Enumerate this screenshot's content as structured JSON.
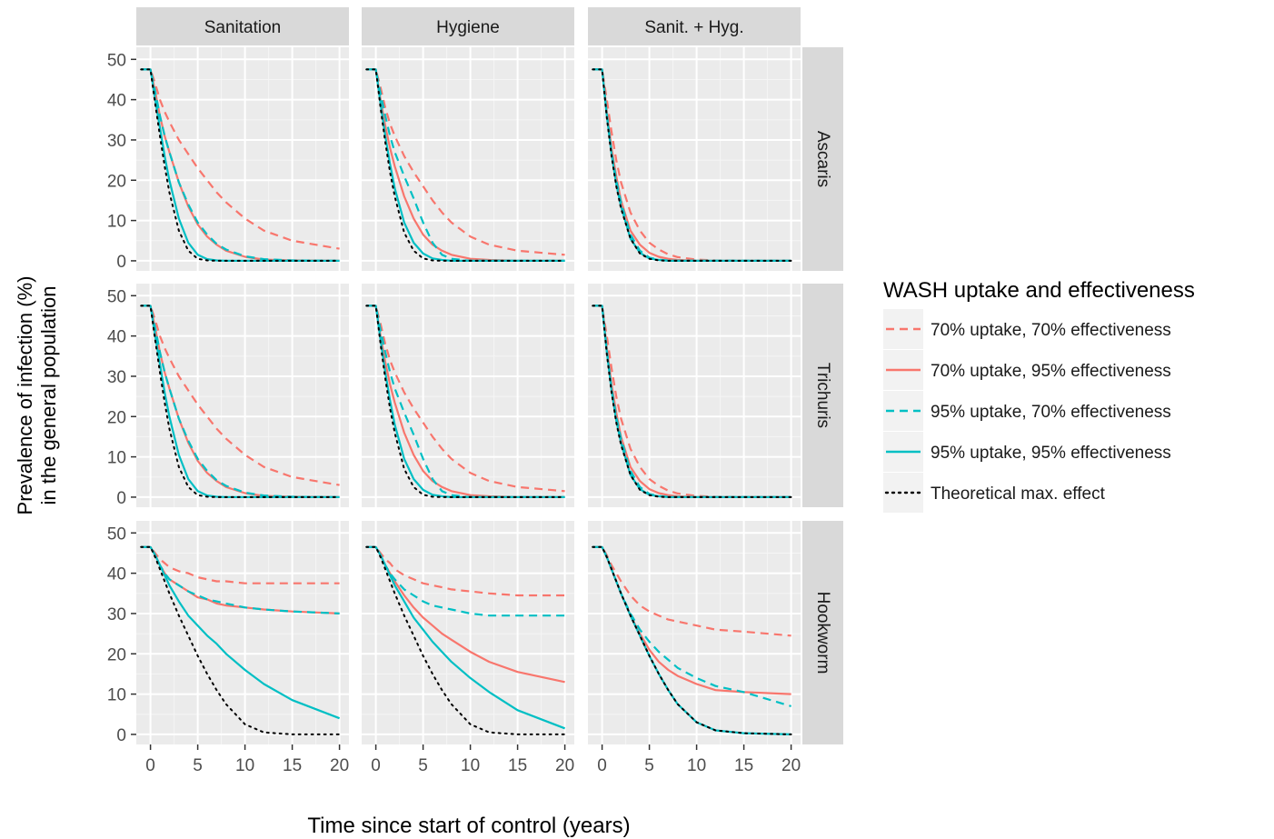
{
  "chart_data": {
    "type": "line",
    "title": "",
    "xlabel": "Time since start of control (years)",
    "ylabel_line1": "Prevalence of infection (%)",
    "ylabel_line2": "in the general population",
    "xlim": [
      -1.5,
      21
    ],
    "ylim": [
      -2.5,
      53
    ],
    "x_ticks": [
      0,
      5,
      10,
      15,
      20
    ],
    "y_ticks": [
      0,
      10,
      20,
      30,
      40,
      50
    ],
    "columns": [
      "Sanitation",
      "Hygiene",
      "Sanit. + Hyg."
    ],
    "rows": [
      "Ascaris",
      "Trichuris",
      "Hookworm"
    ],
    "legend": {
      "title": "WASH uptake and effectiveness",
      "position": "right",
      "items": [
        {
          "label": "70% uptake, 70% effectiveness",
          "color": "#F8766D",
          "dash": "dashed"
        },
        {
          "label": "70% uptake, 95% effectiveness",
          "color": "#F8766D",
          "dash": "solid"
        },
        {
          "label": "95% uptake, 70% effectiveness",
          "color": "#00BFC4",
          "dash": "dashed"
        },
        {
          "label": "95% uptake, 95% effectiveness",
          "color": "#00BFC4",
          "dash": "solid"
        },
        {
          "label": "Theoretical max. effect",
          "color": "#000000",
          "dash": "dotted"
        }
      ]
    },
    "x": [
      -1,
      0,
      0.5,
      1,
      1.5,
      2,
      3,
      4,
      5,
      6,
      7,
      8,
      10,
      12,
      15,
      20
    ],
    "panels": [
      {
        "row": "Ascaris",
        "col": "Sanitation",
        "series": [
          [
            47.5,
            47.5,
            44,
            40,
            37,
            34.5,
            30,
            26.5,
            23,
            20,
            17,
            14.5,
            10.5,
            7.5,
            5,
            3
          ],
          [
            47.5,
            47.5,
            42,
            36,
            31,
            27,
            19.5,
            13.5,
            9,
            6,
            4,
            2.5,
            1,
            0.3,
            0.1,
            0
          ],
          [
            47.5,
            47.5,
            42,
            36,
            31,
            27,
            19.5,
            14,
            9.5,
            6.5,
            4.2,
            2.8,
            1.1,
            0.4,
            0.1,
            0
          ],
          [
            47.5,
            47.5,
            40,
            33,
            26,
            20,
            10.5,
            4.5,
            1.5,
            0.4,
            0.1,
            0,
            0,
            0,
            0,
            0
          ],
          [
            47.5,
            47.5,
            39,
            31,
            23.5,
            17,
            7.5,
            2.5,
            0.5,
            0.1,
            0,
            0,
            0,
            0,
            0,
            0
          ]
        ]
      },
      {
        "row": "Ascaris",
        "col": "Hygiene",
        "series": [
          [
            47.5,
            47.5,
            43,
            38,
            34,
            31,
            26,
            22,
            18.5,
            15,
            12,
            9.5,
            6,
            4,
            2.5,
            1.5
          ],
          [
            47.5,
            47.5,
            40,
            33.5,
            28,
            23.5,
            16,
            10.5,
            6.5,
            4,
            2.5,
            1.5,
            0.5,
            0.2,
            0,
            0
          ],
          [
            47.5,
            47.5,
            41.5,
            36,
            31,
            27,
            21,
            15.5,
            9.5,
            4.5,
            1.5,
            0.5,
            0,
            0,
            0,
            0
          ],
          [
            47.5,
            47.5,
            39,
            31,
            24,
            18,
            9.5,
            4.5,
            1.8,
            0.6,
            0.2,
            0,
            0,
            0,
            0,
            0
          ],
          [
            47.5,
            47.5,
            38,
            29.5,
            22,
            16,
            7,
            2.5,
            0.6,
            0.1,
            0,
            0,
            0,
            0,
            0,
            0
          ]
        ]
      },
      {
        "row": "Ascaris",
        "col": "Sanit. + Hyg.",
        "series": [
          [
            47.5,
            47.5,
            40,
            32,
            25,
            19.5,
            12,
            7.5,
            4.5,
            2.8,
            1.6,
            0.9,
            0.3,
            0.1,
            0,
            0
          ],
          [
            47.5,
            47.5,
            37,
            28,
            21,
            15,
            7.5,
            4,
            2,
            1,
            0.5,
            0.2,
            0,
            0,
            0,
            0
          ],
          [
            47.5,
            47.5,
            36.5,
            27,
            20,
            14.5,
            6.5,
            2.5,
            0.8,
            0.3,
            0.1,
            0,
            0,
            0,
            0,
            0
          ],
          [
            47.5,
            47.5,
            36,
            26.5,
            19,
            13.5,
            5.5,
            2,
            0.6,
            0.2,
            0,
            0,
            0,
            0,
            0,
            0
          ],
          [
            47.5,
            47.5,
            35.5,
            26,
            18.5,
            13,
            5.5,
            1.8,
            0.5,
            0.1,
            0,
            0,
            0,
            0,
            0,
            0
          ]
        ]
      },
      {
        "row": "Trichuris",
        "col": "Sanitation",
        "series": [
          [
            47.5,
            47.5,
            44,
            40,
            37,
            34.5,
            30,
            26.5,
            23,
            20,
            17,
            14.5,
            10.5,
            7.5,
            5,
            3
          ],
          [
            47.5,
            47.5,
            42,
            36,
            31,
            27,
            19.5,
            13.5,
            9,
            6,
            4,
            2.5,
            1,
            0.3,
            0.1,
            0
          ],
          [
            47.5,
            47.5,
            42,
            36,
            31,
            27,
            19.5,
            14,
            9.5,
            6.5,
            4.2,
            2.8,
            1.1,
            0.4,
            0.1,
            0
          ],
          [
            47.5,
            47.5,
            40,
            33,
            26,
            20,
            10.5,
            4.5,
            1.5,
            0.4,
            0.1,
            0,
            0,
            0,
            0,
            0
          ],
          [
            47.5,
            47.5,
            39,
            31,
            23.5,
            17,
            7.5,
            2.5,
            0.5,
            0.1,
            0,
            0,
            0,
            0,
            0,
            0
          ]
        ]
      },
      {
        "row": "Trichuris",
        "col": "Hygiene",
        "series": [
          [
            47.5,
            47.5,
            43,
            38,
            34,
            31,
            26,
            22,
            18.5,
            15,
            12,
            9.5,
            6,
            4,
            2.5,
            1.5
          ],
          [
            47.5,
            47.5,
            40,
            33.5,
            28,
            23.5,
            16,
            10.5,
            6.5,
            4,
            2.5,
            1.5,
            0.5,
            0.2,
            0,
            0
          ],
          [
            47.5,
            47.5,
            41.5,
            36,
            31,
            27,
            21,
            15.5,
            9.5,
            4.5,
            1.5,
            0.5,
            0,
            0,
            0,
            0
          ],
          [
            47.5,
            47.5,
            39,
            31,
            24,
            18,
            9.5,
            4.5,
            1.8,
            0.6,
            0.2,
            0,
            0,
            0,
            0,
            0
          ],
          [
            47.5,
            47.5,
            38,
            29.5,
            22,
            16,
            7,
            2.5,
            0.6,
            0.1,
            0,
            0,
            0,
            0,
            0,
            0
          ]
        ]
      },
      {
        "row": "Trichuris",
        "col": "Sanit. + Hyg.",
        "series": [
          [
            47.5,
            47.5,
            40,
            32,
            25,
            19.5,
            12,
            7.5,
            4.5,
            2.8,
            1.6,
            0.9,
            0.3,
            0.1,
            0,
            0
          ],
          [
            47.5,
            47.5,
            37,
            28,
            21,
            15,
            7.5,
            4,
            2,
            1,
            0.5,
            0.2,
            0,
            0,
            0,
            0
          ],
          [
            47.5,
            47.5,
            36.5,
            27,
            20,
            14.5,
            6.5,
            2.5,
            0.8,
            0.3,
            0.1,
            0,
            0,
            0,
            0,
            0
          ],
          [
            47.5,
            47.5,
            36,
            26.5,
            19,
            13.5,
            5.5,
            2,
            0.6,
            0.2,
            0,
            0,
            0,
            0,
            0,
            0
          ],
          [
            47.5,
            47.5,
            35.5,
            26,
            18.5,
            13,
            5.5,
            1.8,
            0.5,
            0.1,
            0,
            0,
            0,
            0,
            0,
            0
          ]
        ]
      },
      {
        "row": "Hookworm",
        "col": "Sanitation",
        "series": [
          [
            46.5,
            46.5,
            45,
            43.5,
            42.5,
            41.5,
            40.5,
            40,
            39,
            38.5,
            38,
            38,
            37.5,
            37.5,
            37.5,
            37.5
          ],
          [
            46.5,
            46.5,
            44.5,
            42,
            40,
            38.5,
            37,
            35.5,
            34,
            33.5,
            32.5,
            32,
            31.5,
            31,
            30.5,
            30
          ],
          [
            46.5,
            46.5,
            44.5,
            42,
            40,
            38.5,
            37,
            35.5,
            34.5,
            33.5,
            33,
            32.5,
            31.5,
            31,
            30.5,
            30
          ],
          [
            46.5,
            46.5,
            44.5,
            42,
            39.5,
            37,
            33,
            29.5,
            27,
            24.5,
            22.5,
            20,
            16,
            12.5,
            8.5,
            4
          ],
          [
            46.5,
            46.5,
            44,
            41,
            38,
            35,
            29.5,
            24.5,
            19.5,
            15,
            11,
            7.5,
            2.5,
            0.5,
            0,
            0
          ]
        ]
      },
      {
        "row": "Hookworm",
        "col": "Hygiene",
        "series": [
          [
            46.5,
            46.5,
            45,
            43.5,
            42.5,
            41,
            39.5,
            38.5,
            37.5,
            37,
            36.5,
            36,
            35.5,
            35,
            34.5,
            34.5
          ],
          [
            46.5,
            46.5,
            44.5,
            42,
            40,
            38,
            34.5,
            31.5,
            29,
            27,
            25,
            23.5,
            20.5,
            18,
            15.5,
            13
          ],
          [
            46.5,
            46.5,
            44.5,
            42,
            40,
            38.5,
            36,
            34.5,
            33,
            32,
            31.5,
            31,
            30,
            29.5,
            29.5,
            29.5
          ],
          [
            46.5,
            46.5,
            44.5,
            42,
            39.5,
            37,
            33,
            29,
            26,
            23,
            20.5,
            18,
            14,
            10.5,
            6,
            1.5
          ],
          [
            46.5,
            46.5,
            44,
            41,
            38,
            35,
            29.5,
            24.5,
            19.5,
            15,
            11,
            7.5,
            2.5,
            0.5,
            0,
            0
          ]
        ]
      },
      {
        "row": "Hookworm",
        "col": "Sanit. + Hyg.",
        "series": [
          [
            46.5,
            46.5,
            44.5,
            42,
            40,
            38,
            34.5,
            32,
            30.5,
            29.5,
            28.5,
            28,
            27,
            26,
            25.5,
            24.5
          ],
          [
            46.5,
            46.5,
            44,
            41,
            38,
            35,
            29.5,
            25,
            21,
            18,
            16,
            14.5,
            12.5,
            11,
            10.5,
            10
          ],
          [
            46.5,
            46.5,
            44,
            41,
            38,
            35,
            30,
            26,
            23,
            20.5,
            18.5,
            16.5,
            14,
            12,
            10.5,
            7
          ],
          [
            46.5,
            46.5,
            44,
            41,
            38,
            35,
            29.5,
            24.5,
            19.5,
            15,
            11,
            7.5,
            3,
            1,
            0.3,
            0
          ],
          [
            46.5,
            46.5,
            44,
            41,
            38,
            35,
            29.5,
            24.5,
            19.5,
            15,
            11,
            7.5,
            3,
            1,
            0.3,
            0
          ]
        ]
      }
    ]
  }
}
